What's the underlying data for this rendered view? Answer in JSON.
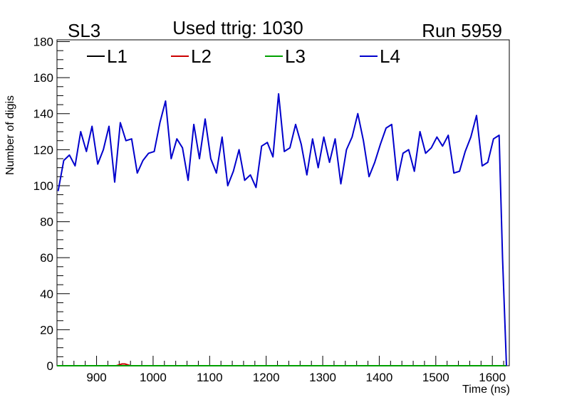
{
  "chart_data": {
    "type": "line",
    "title": "Used ttrig: 1030",
    "left_label": "SL3",
    "right_label": "Run 5959",
    "xlabel": "Time (ns)",
    "ylabel": "Number of digis",
    "xlim": [
      830,
      1630
    ],
    "ylim": [
      0,
      181
    ],
    "x_ticks": [
      900,
      1000,
      1100,
      1200,
      1300,
      1400,
      1500,
      1600
    ],
    "y_ticks": [
      0,
      20,
      40,
      60,
      80,
      100,
      120,
      140,
      160,
      180
    ],
    "grid": false,
    "legend_position": "top",
    "series": [
      {
        "name": "L1",
        "color": "#000000",
        "x": [
          830,
          1625
        ],
        "y": [
          0,
          0
        ]
      },
      {
        "name": "L2",
        "color": "#cc0000",
        "x": [
          830,
          935,
          940,
          945,
          950,
          955,
          960,
          1625
        ],
        "y": [
          0,
          0,
          0.5,
          1,
          1,
          0.5,
          0,
          0
        ]
      },
      {
        "name": "L3",
        "color": "#00a000",
        "x": [
          830,
          1625
        ],
        "y": [
          0,
          0
        ]
      },
      {
        "name": "L4",
        "color": "#0000cc",
        "x": [
          832,
          842,
          852,
          862,
          872,
          882,
          892,
          902,
          912,
          922,
          932,
          942,
          952,
          962,
          972,
          982,
          992,
          1002,
          1012,
          1022,
          1032,
          1042,
          1052,
          1062,
          1072,
          1082,
          1092,
          1102,
          1112,
          1122,
          1132,
          1142,
          1152,
          1162,
          1172,
          1182,
          1192,
          1202,
          1212,
          1222,
          1232,
          1242,
          1252,
          1262,
          1272,
          1282,
          1292,
          1302,
          1312,
          1322,
          1332,
          1342,
          1352,
          1362,
          1372,
          1382,
          1392,
          1402,
          1412,
          1422,
          1432,
          1442,
          1452,
          1462,
          1472,
          1482,
          1492,
          1502,
          1512,
          1522,
          1532,
          1542,
          1552,
          1562,
          1572,
          1582,
          1592,
          1602,
          1612,
          1618,
          1625
        ],
        "y": [
          97,
          114,
          117,
          111,
          130,
          119,
          133,
          112,
          120,
          133,
          102,
          135,
          125,
          126,
          107,
          114,
          118,
          119,
          135,
          147,
          115,
          126,
          121,
          103,
          134,
          115,
          137,
          115,
          107,
          127,
          100,
          108,
          120,
          103,
          106,
          99,
          122,
          124,
          116,
          151,
          119,
          121,
          134,
          123,
          106,
          126,
          110,
          127,
          113,
          126,
          101,
          120,
          127,
          140,
          125,
          105,
          113,
          123,
          132,
          134,
          103,
          118,
          120,
          108,
          130,
          118,
          121,
          127,
          122,
          128,
          107,
          108,
          119,
          127,
          139,
          111,
          113,
          126,
          128,
          60,
          0
        ]
      }
    ]
  }
}
